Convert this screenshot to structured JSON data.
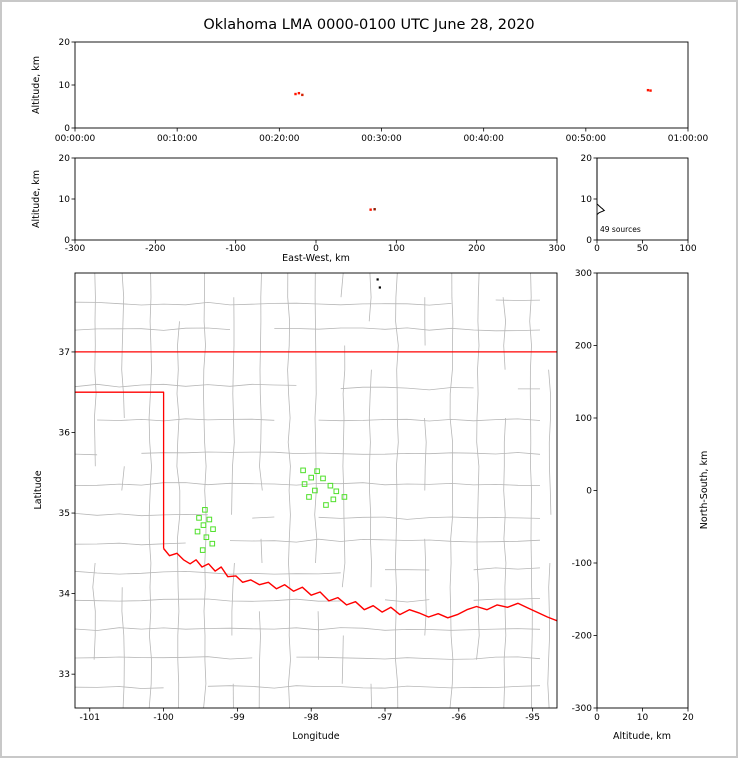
{
  "title": "Oklahoma LMA 0000-0100 UTC June 28, 2020",
  "colors": {
    "source_red": "#ff1500",
    "source_dark_red": "#8b1a00",
    "source_green": "#4fe02a",
    "source_black": "#000000",
    "state_border": "#ff0000",
    "county_line": "#b7b7b7",
    "axis": "#000000",
    "frame": "#c8c8c8"
  },
  "chart_data": [
    {
      "id": "time_height",
      "type": "scatter",
      "ylabel": "Altitude, km",
      "ylim": [
        0,
        20
      ],
      "yticks": [
        0,
        10,
        20
      ],
      "xlim_seconds": [
        0,
        3600
      ],
      "xtick_labels": [
        "00:00:00",
        "00:10:00",
        "00:20:00",
        "00:30:00",
        "00:40:00",
        "00:50:00",
        "01:00:00"
      ],
      "points": [
        {
          "time": "00:21:35",
          "alt_km": 7.9,
          "color": "#ff1500"
        },
        {
          "time": "00:21:55",
          "alt_km": 8.1,
          "color": "#ff1500"
        },
        {
          "time": "00:22:15",
          "alt_km": 7.7,
          "color": "#d42000"
        },
        {
          "time": "00:56:05",
          "alt_km": 8.8,
          "color": "#ff1500"
        },
        {
          "time": "00:56:20",
          "alt_km": 8.7,
          "color": "#ff1500"
        }
      ]
    },
    {
      "id": "ew_height",
      "type": "scatter",
      "xlabel": "East-West, km",
      "ylabel": "Altitude, km",
      "xlim": [
        -300,
        300
      ],
      "xticks": [
        -300,
        -200,
        -100,
        0,
        100,
        200,
        300
      ],
      "ylim": [
        0,
        20
      ],
      "yticks": [
        0,
        10,
        20
      ],
      "points": [
        {
          "x_km": 68,
          "alt_km": 7.4,
          "color": "#ff1500"
        },
        {
          "x_km": 73,
          "alt_km": 7.5,
          "color": "#8b1a00"
        }
      ]
    },
    {
      "id": "altitude_histogram",
      "type": "line",
      "annotation": "49 sources",
      "xlim": [
        0,
        100
      ],
      "xticks": [
        0,
        50,
        100
      ],
      "ylim": [
        0,
        20
      ],
      "yticks": [
        0,
        10,
        20
      ],
      "profile_alt_count": [
        [
          0,
          0
        ],
        [
          6.2,
          0
        ],
        [
          6.4,
          1
        ],
        [
          6.6,
          2
        ],
        [
          6.8,
          4
        ],
        [
          7.0,
          6
        ],
        [
          7.2,
          8
        ],
        [
          7.4,
          7
        ],
        [
          7.6,
          6
        ],
        [
          7.8,
          5
        ],
        [
          8.0,
          4
        ],
        [
          8.2,
          3
        ],
        [
          8.4,
          2
        ],
        [
          8.6,
          1
        ],
        [
          8.8,
          0
        ],
        [
          20,
          0
        ]
      ]
    },
    {
      "id": "plan_view",
      "type": "scatter",
      "xlabel": "Longitude",
      "ylabel": "Latitude",
      "xlim": [
        -101.2,
        -94.67
      ],
      "xticks": [
        -101,
        -100,
        -99,
        -98,
        -97,
        -96,
        -95
      ],
      "ylim": [
        32.58,
        37.98
      ],
      "yticks": [
        33,
        34,
        35,
        36,
        37
      ],
      "green_squares_lon_lat": [
        [
          -99.44,
          35.04
        ],
        [
          -99.52,
          34.94
        ],
        [
          -99.38,
          34.92
        ],
        [
          -99.46,
          34.85
        ],
        [
          -99.33,
          34.8
        ],
        [
          -99.54,
          34.77
        ],
        [
          -99.42,
          34.7
        ],
        [
          -99.34,
          34.62
        ],
        [
          -99.47,
          34.54
        ],
        [
          -98.11,
          35.53
        ],
        [
          -97.92,
          35.52
        ],
        [
          -98.0,
          35.44
        ],
        [
          -97.84,
          35.43
        ],
        [
          -98.09,
          35.36
        ],
        [
          -97.74,
          35.34
        ],
        [
          -97.95,
          35.28
        ],
        [
          -97.66,
          35.27
        ],
        [
          -98.03,
          35.2
        ],
        [
          -97.55,
          35.2
        ],
        [
          -97.7,
          35.17
        ],
        [
          -97.8,
          35.1
        ]
      ],
      "black_points_lon_lat": [
        [
          -97.1,
          37.9
        ],
        [
          -97.07,
          37.8
        ]
      ],
      "state_border": {
        "kansas_border": [
          [
            -101.2,
            37.0
          ],
          [
            -94.67,
            37.0
          ]
        ],
        "panhandle": [
          [
            -101.2,
            36.5
          ],
          [
            -100.0,
            36.5
          ],
          [
            -100.0,
            34.56
          ]
        ],
        "red_river": [
          [
            -100.0,
            34.56
          ],
          [
            -99.92,
            34.47
          ],
          [
            -99.82,
            34.5
          ],
          [
            -99.73,
            34.42
          ],
          [
            -99.64,
            34.37
          ],
          [
            -99.56,
            34.42
          ],
          [
            -99.48,
            34.33
          ],
          [
            -99.39,
            34.37
          ],
          [
            -99.3,
            34.28
          ],
          [
            -99.22,
            34.33
          ],
          [
            -99.13,
            34.21
          ],
          [
            -99.02,
            34.22
          ],
          [
            -98.93,
            34.14
          ],
          [
            -98.82,
            34.17
          ],
          [
            -98.7,
            34.11
          ],
          [
            -98.58,
            34.14
          ],
          [
            -98.47,
            34.06
          ],
          [
            -98.36,
            34.11
          ],
          [
            -98.24,
            34.03
          ],
          [
            -98.12,
            34.08
          ],
          [
            -98.0,
            33.98
          ],
          [
            -97.88,
            34.02
          ],
          [
            -97.76,
            33.91
          ],
          [
            -97.64,
            33.95
          ],
          [
            -97.52,
            33.86
          ],
          [
            -97.4,
            33.9
          ],
          [
            -97.28,
            33.8
          ],
          [
            -97.16,
            33.85
          ],
          [
            -97.04,
            33.77
          ],
          [
            -96.92,
            33.83
          ],
          [
            -96.8,
            33.74
          ],
          [
            -96.67,
            33.8
          ],
          [
            -96.54,
            33.76
          ],
          [
            -96.41,
            33.71
          ],
          [
            -96.28,
            33.75
          ],
          [
            -96.15,
            33.7
          ],
          [
            -96.02,
            33.74
          ],
          [
            -95.89,
            33.8
          ],
          [
            -95.76,
            33.84
          ],
          [
            -95.62,
            33.8
          ],
          [
            -95.48,
            33.86
          ],
          [
            -95.34,
            33.83
          ],
          [
            -95.2,
            33.88
          ],
          [
            -95.06,
            33.82
          ],
          [
            -94.92,
            33.76
          ],
          [
            -94.8,
            33.71
          ],
          [
            -94.66,
            33.66
          ]
        ]
      },
      "county_grid": {
        "lons": [
          -100.93,
          -100.55,
          -100.18,
          -99.8,
          -99.44,
          -99.06,
          -98.68,
          -98.3,
          -97.94,
          -97.58,
          -97.2,
          -96.84,
          -96.46,
          -96.1,
          -95.74,
          -95.38,
          -95.02,
          -94.78
        ],
        "lats": [
          37.6,
          37.28,
          36.58,
          36.16,
          35.74,
          35.36,
          34.98,
          34.62,
          34.26,
          33.92,
          33.56,
          33.2,
          32.84
        ]
      }
    },
    {
      "id": "ns_height",
      "type": "scatter",
      "xlabel": "Altitude, km",
      "ylabel": "North-South, km",
      "xlim": [
        0,
        20
      ],
      "xticks": [
        0,
        10,
        20
      ],
      "ylim": [
        -300,
        300
      ],
      "yticks": [
        -300,
        -200,
        -100,
        0,
        100,
        200,
        300
      ],
      "points": []
    }
  ]
}
